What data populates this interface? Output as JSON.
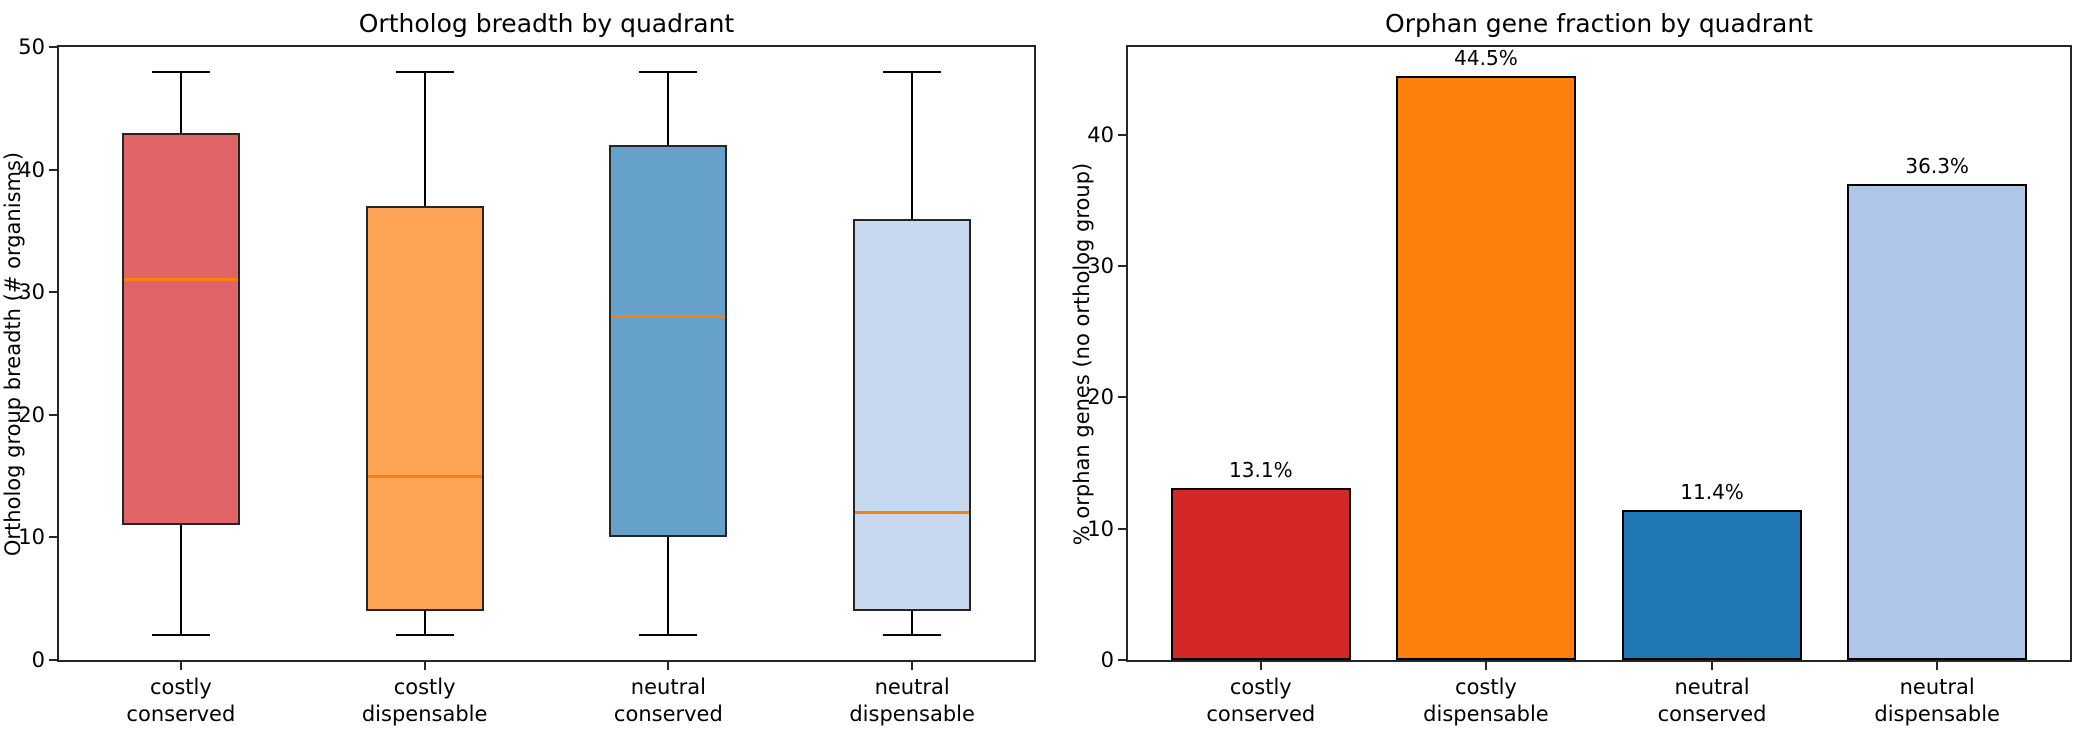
{
  "figure": {
    "background": "#ffffff"
  },
  "chart_data": [
    {
      "type": "box",
      "title": "Ortholog breadth by quadrant",
      "xlabel": "",
      "ylabel": "Ortholog group breadth (# organisms)",
      "categories": [
        "costly\nconserved",
        "costly\ndispensable",
        "neutral\nconserved",
        "neutral\ndispensable"
      ],
      "yticks": [
        "0",
        "10",
        "20",
        "30",
        "40",
        "50"
      ],
      "ytick_values": [
        0,
        10,
        20,
        30,
        40,
        50
      ],
      "ylim": [
        0,
        50
      ],
      "grid": false,
      "legend": null,
      "median_color": "#ff7f0e",
      "edge_color": "#262626",
      "whisker_color": "#000000",
      "boxes": [
        {
          "label": "costly conserved",
          "whisker_low": 2,
          "q1": 11,
          "median": 31,
          "q3": 43,
          "whisker_high": 48,
          "fill": "#df6465"
        },
        {
          "label": "costly dispensable",
          "whisker_low": 2,
          "q1": 4,
          "median": 15,
          "q3": 37,
          "whisker_high": 48,
          "fill": "#ffa454"
        },
        {
          "label": "neutral conserved",
          "whisker_low": 2,
          "q1": 10,
          "median": 28,
          "q3": 42,
          "whisker_high": 48,
          "fill": "#66a1ca"
        },
        {
          "label": "neutral dispensable",
          "whisker_low": 2,
          "q1": 4,
          "median": 12,
          "q3": 36,
          "whisker_high": 48,
          "fill": "#c8d8ee"
        }
      ]
    },
    {
      "type": "bar",
      "title": "Orphan gene fraction by quadrant",
      "xlabel": "",
      "ylabel": "% orphan genes (no ortholog group)",
      "categories": [
        "costly\nconserved",
        "costly\ndispensable",
        "neutral\nconserved",
        "neutral\ndispensable"
      ],
      "values": [
        13.1,
        44.5,
        11.4,
        36.3
      ],
      "bar_labels": [
        "13.1%",
        "44.5%",
        "11.4%",
        "36.3%"
      ],
      "colors": [
        "#d62728",
        "#ff7f0e",
        "#1f77b4",
        "#aec7e8"
      ],
      "edge_color": "#000000",
      "yticks": [
        "0",
        "10",
        "20",
        "30",
        "40"
      ],
      "ytick_values": [
        0,
        10,
        20,
        30,
        40
      ],
      "ylim": [
        0,
        46.7
      ],
      "grid": false,
      "legend": null
    }
  ]
}
